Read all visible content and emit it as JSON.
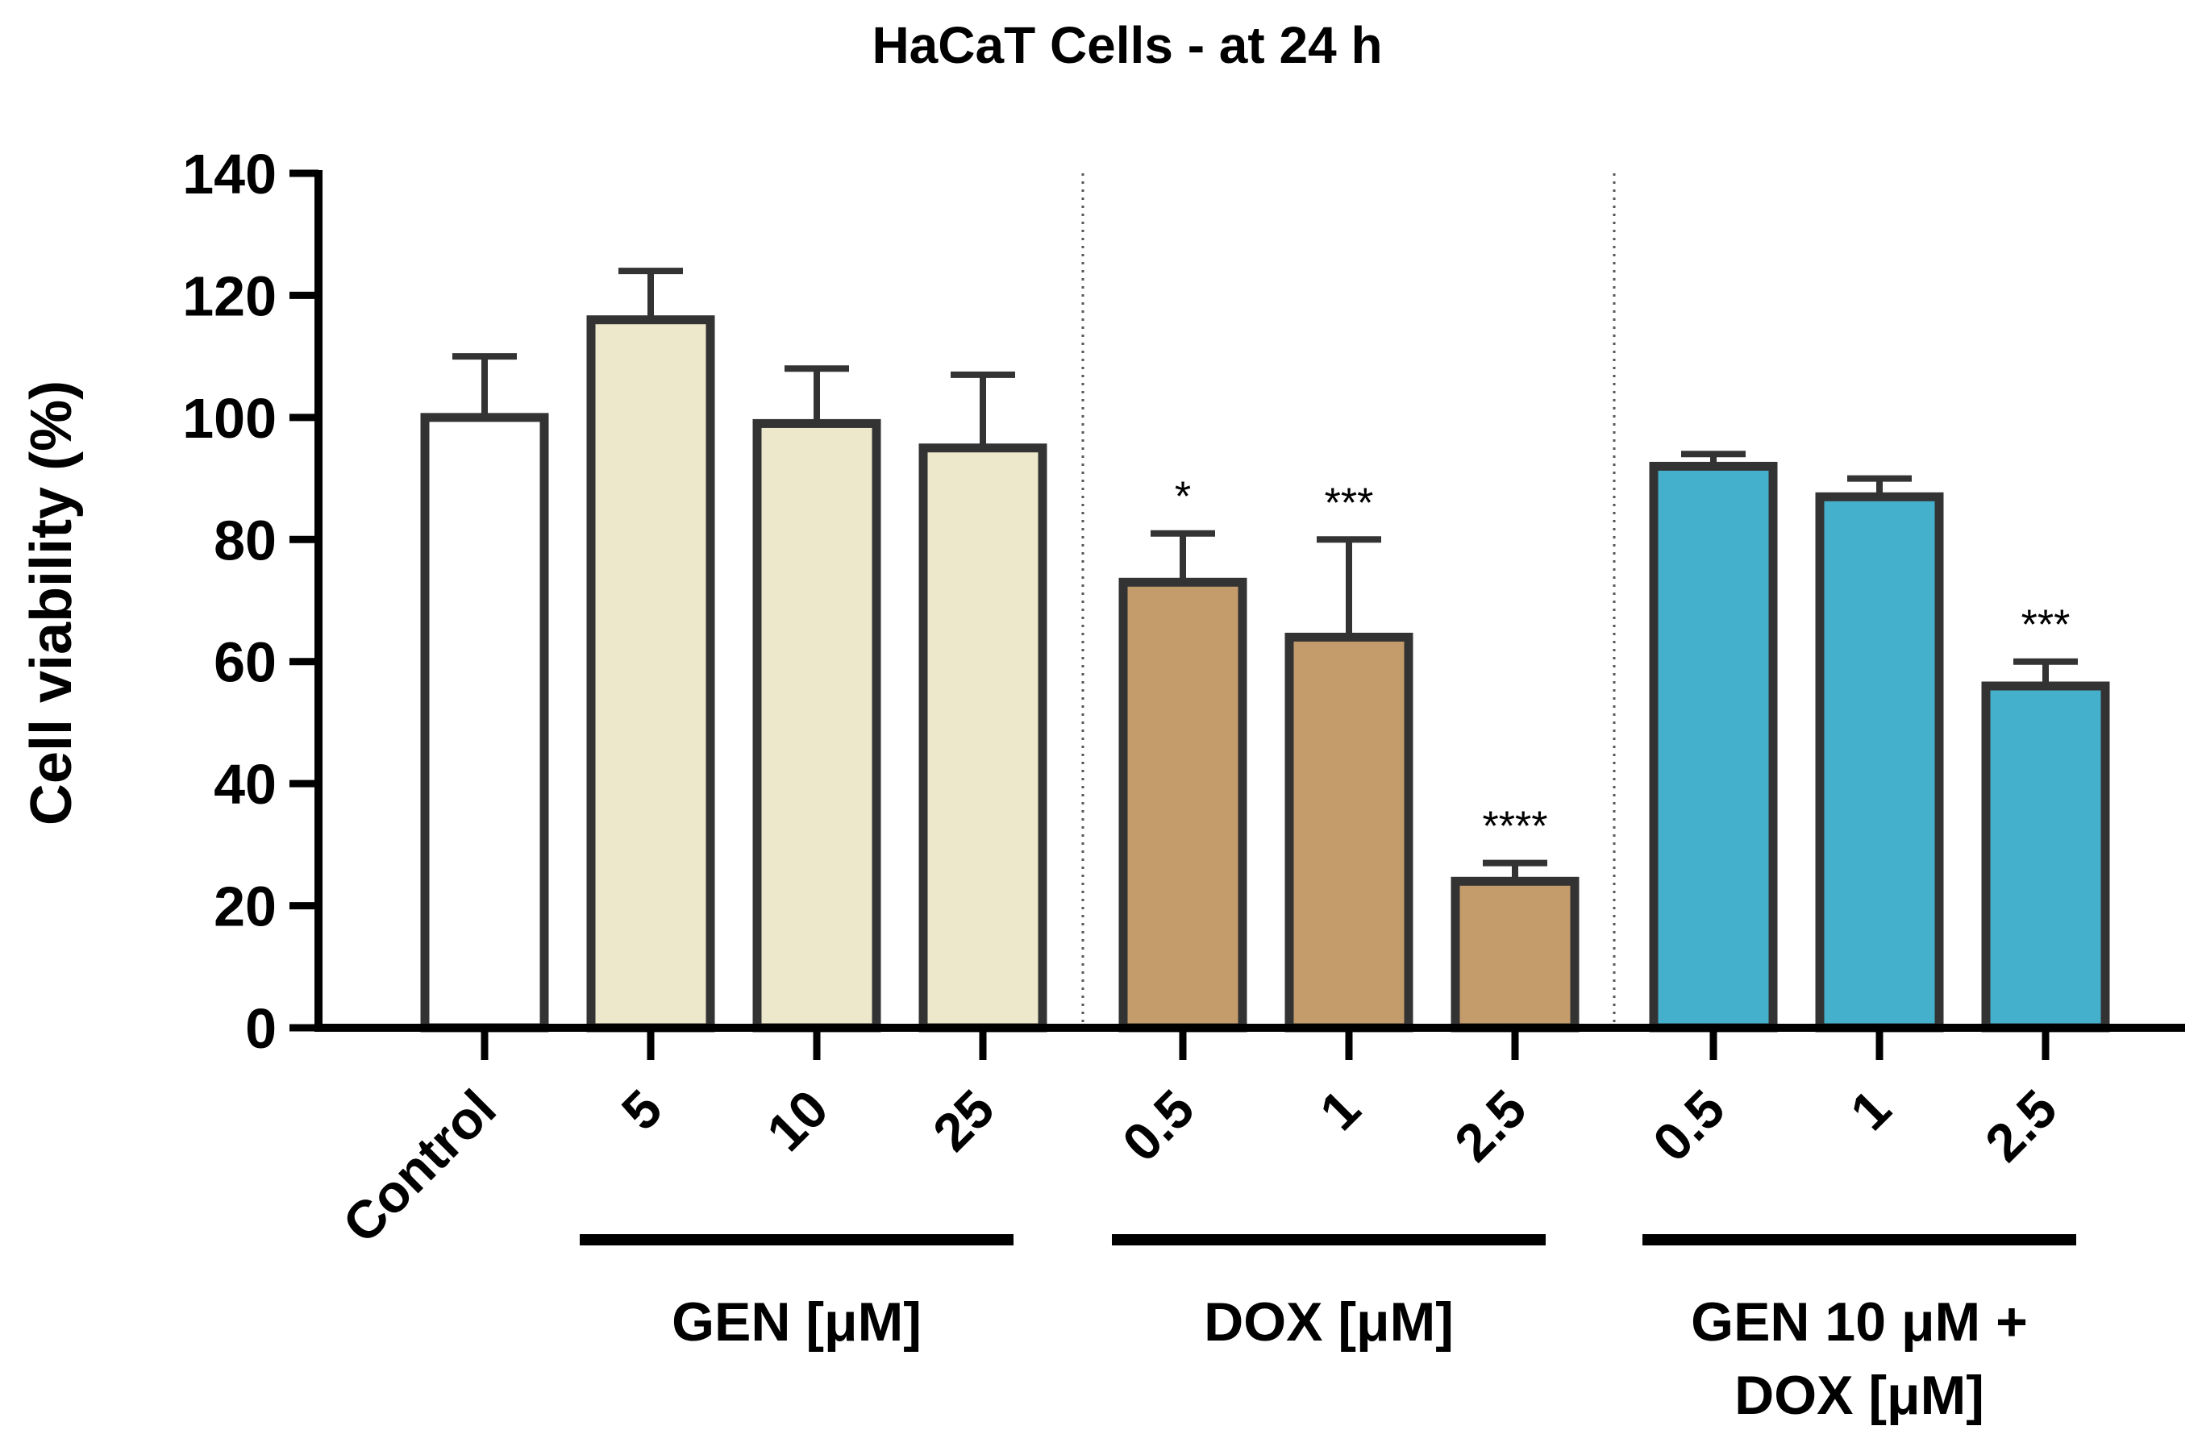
{
  "chart_data": {
    "type": "bar",
    "title": "HaCaT Cells - at 24 h",
    "xlabel": "",
    "ylabel": "Cell viability (%)",
    "ylim": [
      0,
      140
    ],
    "yticks": [
      0,
      20,
      40,
      60,
      80,
      100,
      120,
      140
    ],
    "grid": false,
    "categories": [
      "Control",
      "5",
      "10",
      "25",
      "0.5",
      "1",
      "2.5",
      "0.5",
      "1",
      "2.5"
    ],
    "values": [
      100,
      116,
      99,
      95,
      73,
      64,
      24,
      92,
      87,
      56
    ],
    "errors": [
      10,
      8,
      9,
      12,
      8,
      16,
      3,
      2,
      3,
      4
    ],
    "significance": [
      "",
      "",
      "",
      "",
      "*",
      "***",
      "****",
      "",
      "",
      "***"
    ],
    "bar_colors": [
      "#ffffff",
      "#ede8cb",
      "#ede8cb",
      "#ede8cb",
      "#c49c6c",
      "#c49c6c",
      "#c49c6c",
      "#44b0cc",
      "#44b0cc",
      "#44b0cc"
    ],
    "groups": [
      {
        "label_lines": [
          "GEN [μM]"
        ],
        "first": 1,
        "last": 3
      },
      {
        "label_lines": [
          "DOX [μM]"
        ],
        "first": 4,
        "last": 6
      },
      {
        "label_lines": [
          "GEN 10 μM +",
          "DOX [μM]"
        ],
        "first": 7,
        "last": 9
      }
    ],
    "separators_after": [
      3,
      6
    ]
  },
  "colors": {
    "outline": "#333333",
    "axis": "#000000"
  }
}
